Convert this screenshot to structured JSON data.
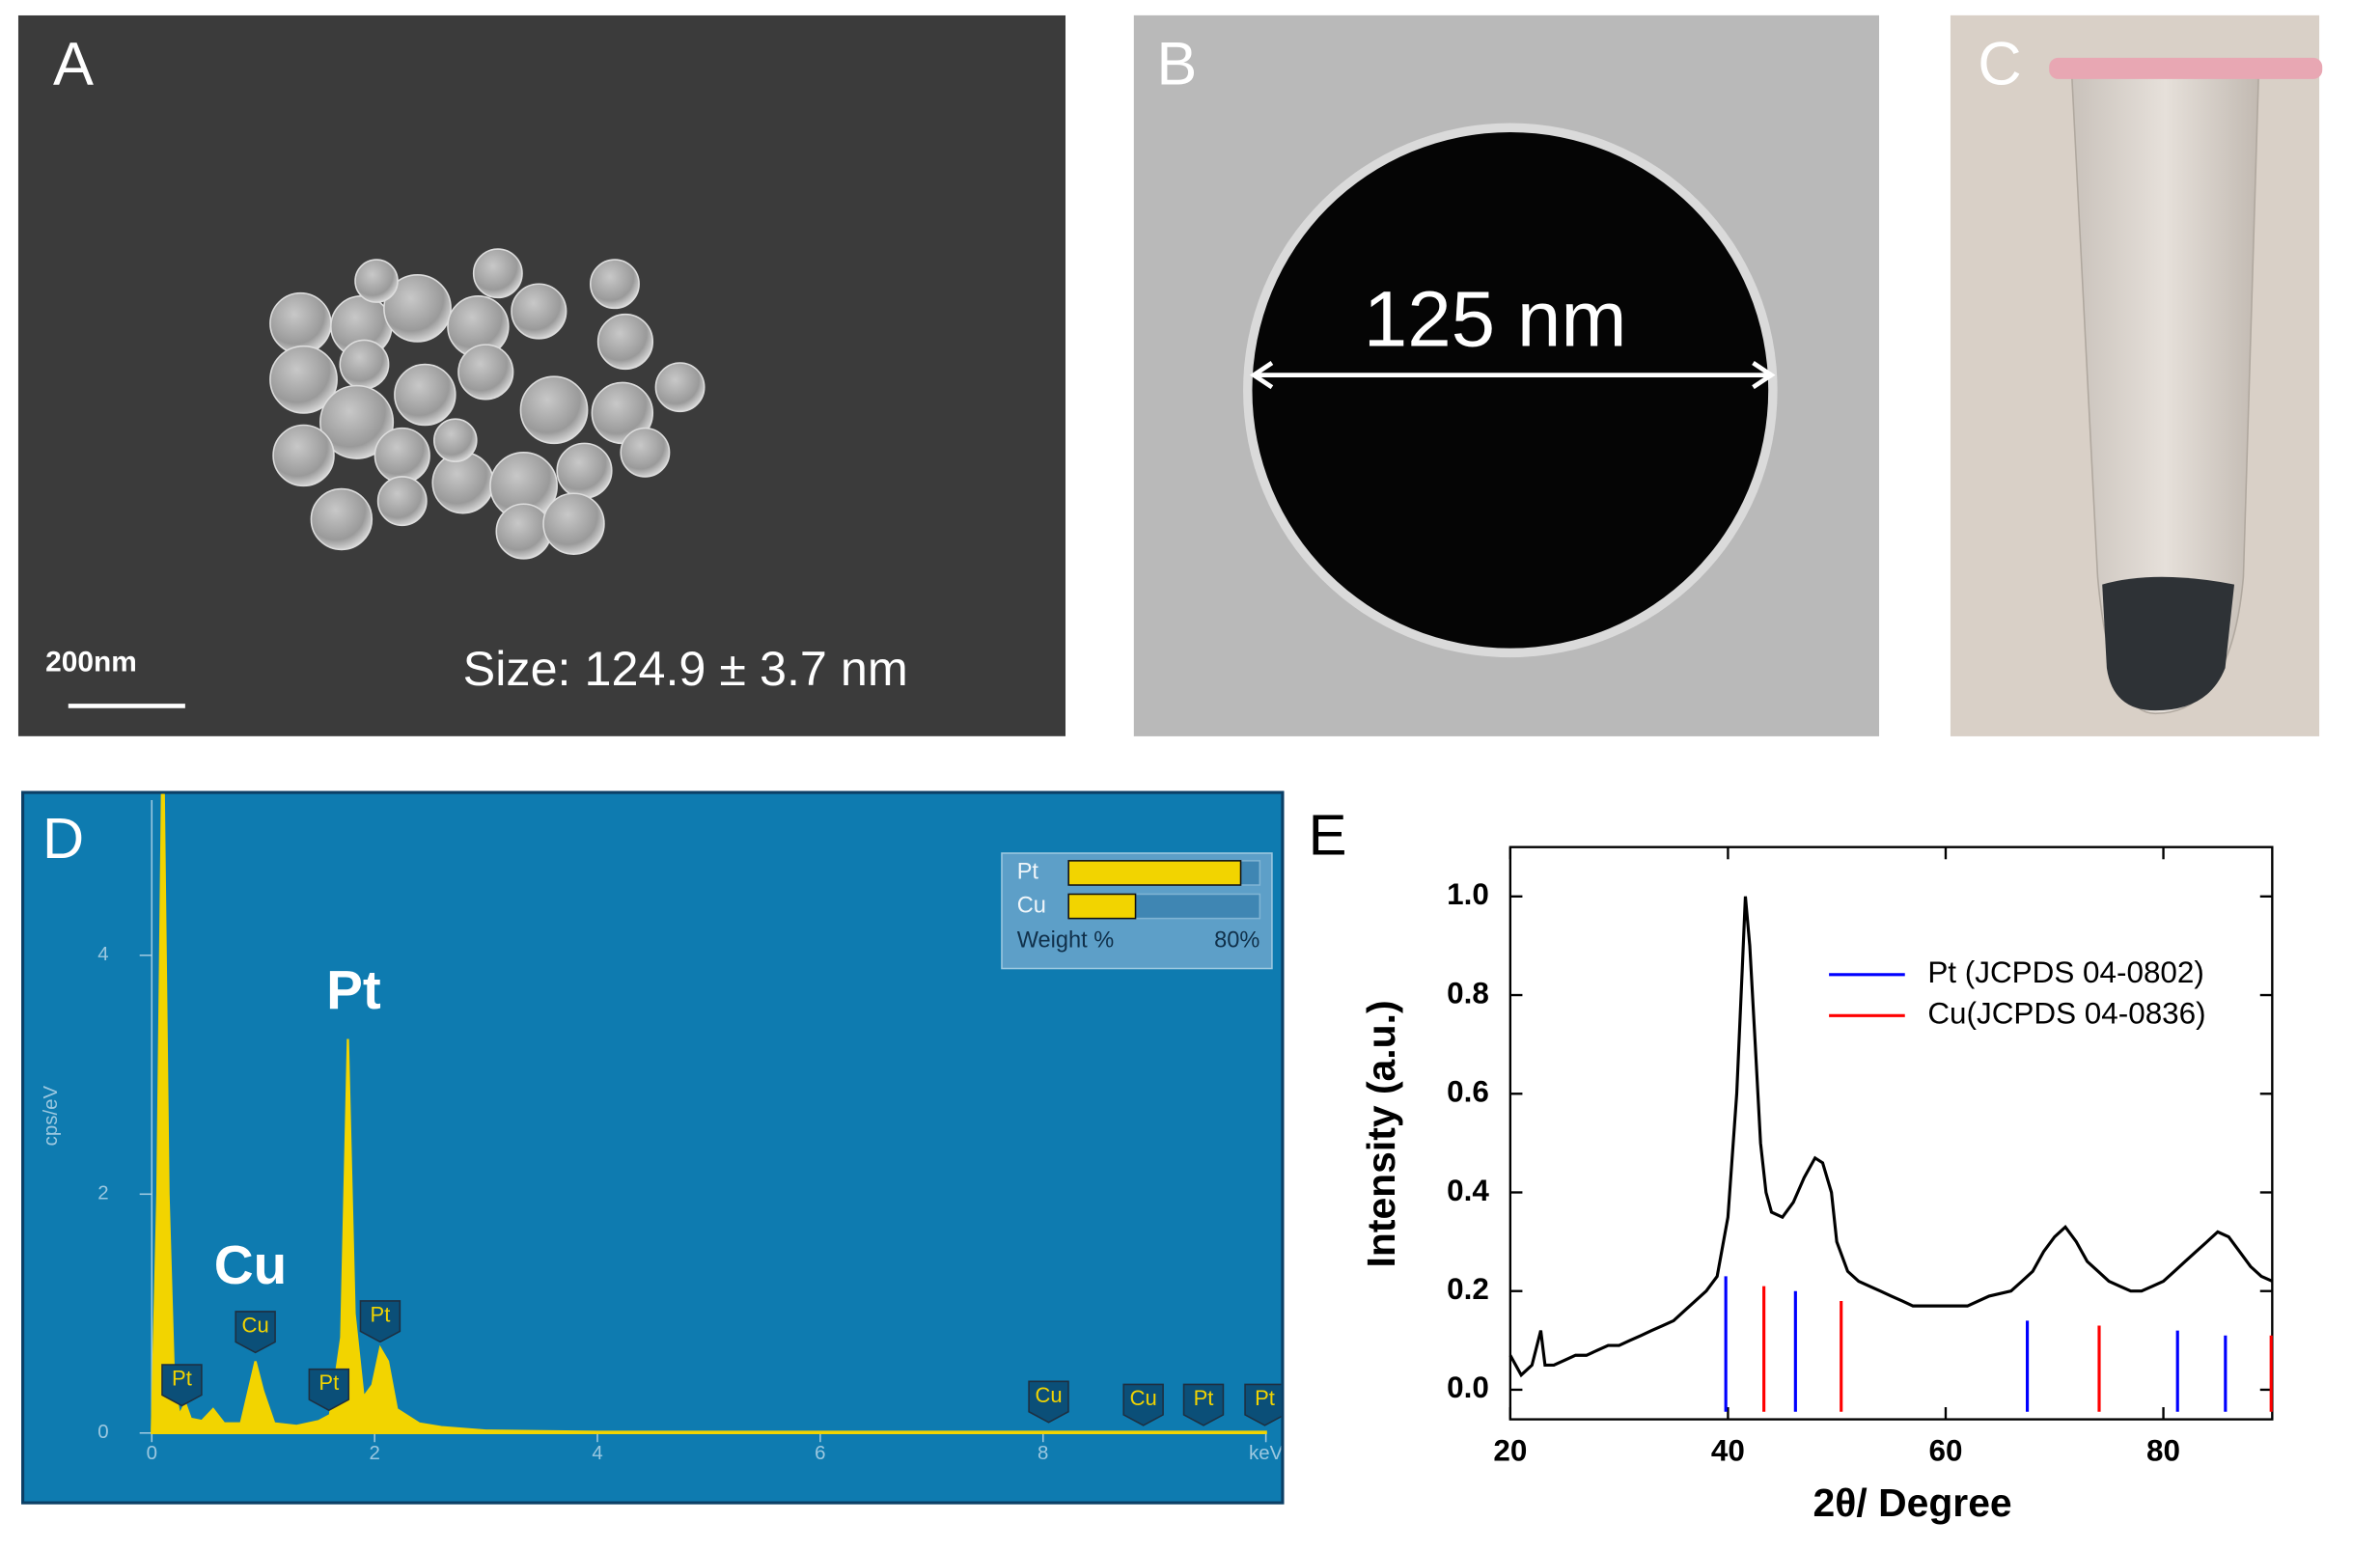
{
  "panels": {
    "A": {
      "label": "A",
      "scale_bar": "200nm",
      "size": "Size: 124.9 ± 3.7 nm"
    },
    "B": {
      "label": "B",
      "diameter": "125 nm"
    },
    "C": {
      "label": "C"
    }
  },
  "chart_data": [
    {
      "type": "area",
      "label": "D",
      "y_label": "cps/eV",
      "color": "#f2d400",
      "x": [
        0,
        0.05,
        0.1,
        0.15,
        0.2,
        0.25,
        0.3,
        0.35,
        0.45,
        0.55,
        0.65,
        0.8,
        0.93,
        1.0,
        1.1,
        1.3,
        1.5,
        1.6,
        1.7,
        1.76,
        1.82,
        1.9,
        1.98,
        2.05,
        2.12,
        2.2,
        2.4,
        2.6,
        3,
        4,
        6,
        8,
        10
      ],
      "values": [
        0,
        2,
        6,
        2,
        0.4,
        0.15,
        0.25,
        0.12,
        0.1,
        0.2,
        0.08,
        0.08,
        0.6,
        0.35,
        0.08,
        0.06,
        0.1,
        0.15,
        0.8,
        3.3,
        1.0,
        0.3,
        0.4,
        0.71,
        0.6,
        0.2,
        0.08,
        0.05,
        0.02,
        0.01,
        0.01,
        0.01,
        0.01
      ],
      "xlim": [
        0,
        10
      ],
      "xticks": [
        0,
        2,
        4,
        6,
        8,
        {
          "value": 10,
          "label": "keV"
        }
      ],
      "ylim": [
        0,
        5.3
      ],
      "yticks": [
        0,
        2,
        4
      ],
      "markers": [
        {
          "label": "Pt",
          "x": 0.27
        },
        {
          "label": "Cu",
          "x": 0.93
        },
        {
          "label": "Pt",
          "x": 1.59
        },
        {
          "label": "Pt",
          "x": 2.05
        },
        {
          "label": "Cu",
          "x": 8.05
        },
        {
          "label": "Cu",
          "x": 8.9
        },
        {
          "label": "Pt",
          "x": 9.44
        },
        {
          "label": "Pt",
          "x": 9.99
        }
      ],
      "annotations": [
        "Cu",
        "Pt"
      ]
    },
    {
      "type": "barh",
      "x_label": "Weight %",
      "color": "#f2d400",
      "categories": [
        "Pt",
        "Cu"
      ],
      "values": [
        72,
        28
      ],
      "xlim": [
        0,
        80
      ],
      "xticks": [
        {
          "value": 80,
          "label": "80%"
        }
      ]
    },
    {
      "type": "line",
      "label": "E",
      "x_label": "2θ/ Degree",
      "y_label": "Intensity (a.u.)",
      "xlim": [
        20,
        90
      ],
      "xticks": [
        20,
        40,
        60,
        80
      ],
      "ylim": [
        -0.06,
        1.1
      ],
      "yticks": [
        {
          "value": 0,
          "label": "0.0"
        },
        0.2,
        0.4,
        0.6,
        0.8,
        {
          "value": 1,
          "label": "1.0"
        }
      ],
      "series": [
        {
          "color": "#000000",
          "x": [
            20,
            21,
            22,
            22.8,
            23.2,
            24,
            25,
            26,
            27,
            28,
            29,
            30,
            31,
            32,
            33,
            34,
            35,
            36,
            37,
            38,
            39,
            40,
            40.8,
            41.3,
            41.6,
            42,
            42.5,
            43,
            43.5,
            44,
            45,
            46,
            47,
            48,
            48.7,
            49.5,
            50,
            51,
            52,
            53,
            54,
            55,
            56,
            57,
            58,
            60,
            62,
            64,
            66,
            67,
            68,
            69,
            70,
            71,
            72,
            73,
            74,
            75,
            76,
            77,
            78,
            79,
            80,
            81,
            82,
            83,
            84,
            85,
            86,
            87,
            88,
            89,
            90
          ],
          "values": [
            0.07,
            0.03,
            0.05,
            0.12,
            0.05,
            0.05,
            0.06,
            0.07,
            0.07,
            0.08,
            0.09,
            0.09,
            0.1,
            0.11,
            0.12,
            0.13,
            0.14,
            0.16,
            0.18,
            0.2,
            0.23,
            0.35,
            0.6,
            0.85,
            1.0,
            0.9,
            0.7,
            0.5,
            0.4,
            0.36,
            0.35,
            0.38,
            0.43,
            0.47,
            0.46,
            0.4,
            0.3,
            0.24,
            0.22,
            0.21,
            0.2,
            0.19,
            0.18,
            0.17,
            0.17,
            0.17,
            0.17,
            0.19,
            0.2,
            0.22,
            0.24,
            0.28,
            0.31,
            0.33,
            0.3,
            0.26,
            0.24,
            0.22,
            0.21,
            0.2,
            0.2,
            0.21,
            0.22,
            0.24,
            0.26,
            0.28,
            0.3,
            0.32,
            0.31,
            0.28,
            0.25,
            0.23,
            0.22
          ]
        },
        {
          "name": "Pt (JCPDS 04-0802)",
          "color": "#0000ff",
          "x": [
            39.8,
            46.2,
            67.5,
            81.3,
            85.7
          ],
          "values": [
            0.23,
            0.2,
            0.14,
            0.12,
            0.11
          ]
        },
        {
          "name": "Cu(JCPDS 04-0836)",
          "color": "#ff0000",
          "x": [
            43.3,
            50.4,
            74.1,
            89.9
          ],
          "values": [
            0.21,
            0.18,
            0.13,
            0.11
          ]
        }
      ]
    }
  ]
}
